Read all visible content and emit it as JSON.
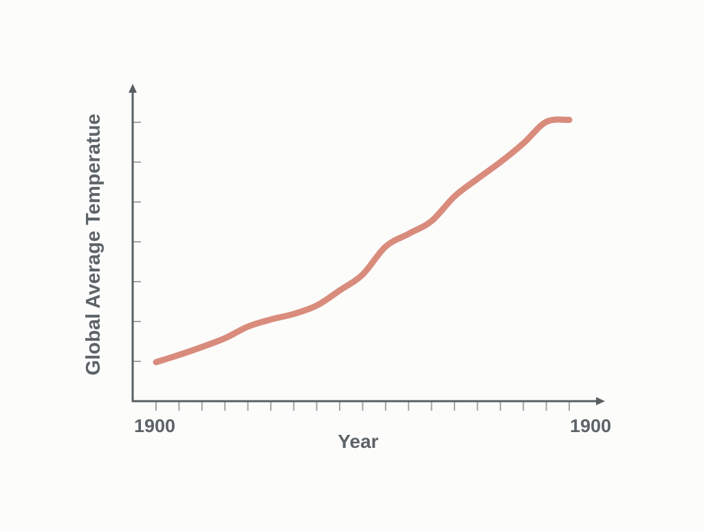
{
  "chart_data": {
    "type": "line",
    "title": "",
    "xlabel": "Year",
    "ylabel": "Global Average Temperatue",
    "x_tick_labels": [
      "1900",
      "1900"
    ],
    "y_tick_labels": [],
    "grid": false,
    "legend": "none",
    "xlim": [
      0,
      18
    ],
    "ylim": [
      0,
      7
    ],
    "series": [
      {
        "x": [
          0,
          1,
          2,
          3,
          4,
          5,
          6,
          7,
          8,
          9,
          10,
          11,
          12,
          13,
          14,
          15,
          16,
          17,
          18
        ],
        "values": [
          0.98,
          1.16,
          1.36,
          1.58,
          1.87,
          2.05,
          2.19,
          2.4,
          2.78,
          3.18,
          3.88,
          4.2,
          4.52,
          5.14,
          5.58,
          6.0,
          6.47,
          7.01,
          7.06
        ],
        "color": "#d98c7c"
      }
    ],
    "colors": {
      "axis": "#585f63",
      "tick": "#a0a5a8",
      "text": "#5d6468",
      "background": "#fcfcfb"
    }
  }
}
